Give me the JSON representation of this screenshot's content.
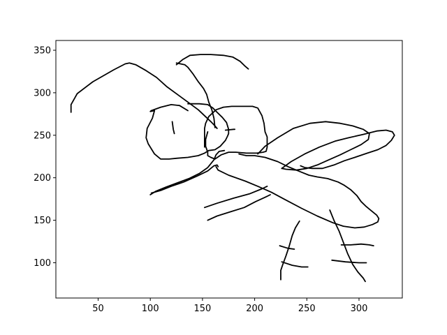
{
  "chart_data": {
    "type": "line",
    "title": "",
    "xlabel": "",
    "ylabel": "",
    "xlim": [
      9.5,
      341.5
    ],
    "ylim": [
      58.5,
      361.5
    ],
    "x_ticks": [
      50,
      100,
      150,
      200,
      250,
      300
    ],
    "y_ticks": [
      100,
      150,
      200,
      250,
      300,
      350
    ],
    "x_tick_labels": [
      "50",
      "100",
      "150",
      "200",
      "250",
      "300"
    ],
    "y_tick_labels": [
      "100",
      "150",
      "200",
      "250",
      "300",
      "350"
    ],
    "grid": false,
    "legend": "none",
    "line_color": "#000000",
    "strokes": [
      [
        [
          24,
          277
        ],
        [
          24,
          286
        ],
        [
          30,
          299
        ],
        [
          45,
          313
        ],
        [
          65,
          327
        ],
        [
          76,
          334
        ],
        [
          80,
          335
        ],
        [
          86,
          333
        ],
        [
          96,
          326
        ],
        [
          106,
          318
        ],
        [
          116,
          307
        ],
        [
          126,
          298
        ],
        [
          136,
          289
        ],
        [
          146,
          280
        ],
        [
          152,
          273
        ],
        [
          158,
          266
        ],
        [
          162,
          261
        ],
        [
          164,
          258
        ]
      ],
      [
        [
          125,
          335
        ],
        [
          129,
          334
        ],
        [
          133,
          333
        ],
        [
          136,
          330
        ],
        [
          141,
          322
        ],
        [
          146,
          313
        ],
        [
          151,
          305
        ],
        [
          154,
          298
        ],
        [
          156,
          289
        ],
        [
          159,
          280
        ],
        [
          161,
          270
        ],
        [
          162,
          259
        ]
      ],
      [
        [
          125,
          333
        ],
        [
          131,
          339
        ],
        [
          138,
          344
        ],
        [
          148,
          345
        ],
        [
          158,
          345
        ],
        [
          170,
          344
        ],
        [
          179,
          342
        ],
        [
          186,
          337
        ],
        [
          191,
          331
        ],
        [
          194,
          328
        ]
      ],
      [
        [
          136,
          279
        ],
        [
          128,
          285
        ],
        [
          120,
          286
        ],
        [
          110,
          283
        ],
        [
          101,
          279
        ],
        [
          100,
          278
        ],
        [
          104,
          279
        ],
        [
          102,
          270
        ],
        [
          97,
          258
        ],
        [
          96,
          247
        ],
        [
          98,
          240
        ],
        [
          104,
          228
        ],
        [
          110,
          222
        ],
        [
          118,
          222
        ],
        [
          126,
          223
        ],
        [
          136,
          224
        ],
        [
          146,
          226
        ],
        [
          152,
          229
        ],
        [
          156,
          232
        ],
        [
          162,
          233
        ],
        [
          167,
          237
        ],
        [
          172,
          244
        ],
        [
          174,
          249
        ],
        [
          175,
          252
        ],
        [
          175,
          257
        ],
        [
          173,
          265
        ],
        [
          169,
          271
        ],
        [
          164,
          277
        ],
        [
          160,
          282
        ],
        [
          155,
          286
        ],
        [
          147,
          287
        ],
        [
          136,
          287
        ]
      ],
      [
        [
          121,
          266
        ],
        [
          122,
          257
        ],
        [
          123,
          252
        ]
      ],
      [
        [
          172,
          256
        ],
        [
          180,
          257
        ],
        [
          181,
          257
        ]
      ],
      [
        [
          155,
          254
        ],
        [
          153,
          245
        ],
        [
          153,
          237
        ],
        [
          155,
          230
        ],
        [
          155,
          226
        ],
        [
          158,
          224
        ],
        [
          162,
          222
        ],
        [
          168,
          227
        ],
        [
          175,
          230
        ],
        [
          182,
          230
        ],
        [
          192,
          229
        ],
        [
          202,
          229
        ],
        [
          208,
          230
        ],
        [
          211,
          231
        ],
        [
          212,
          236
        ],
        [
          212,
          248
        ],
        [
          210,
          254
        ],
        [
          209,
          264
        ],
        [
          207,
          273
        ],
        [
          203,
          282
        ],
        [
          198,
          284
        ],
        [
          190,
          284
        ],
        [
          178,
          284
        ],
        [
          170,
          283
        ],
        [
          163,
          280
        ],
        [
          156,
          272
        ],
        [
          153,
          264
        ],
        [
          152,
          258
        ],
        [
          152,
          250
        ],
        [
          152,
          243
        ],
        [
          152,
          236
        ]
      ],
      [
        [
          100,
          180
        ],
        [
          105,
          184
        ],
        [
          115,
          189
        ],
        [
          126,
          194
        ],
        [
          137,
          199
        ],
        [
          147,
          205
        ],
        [
          155,
          212
        ],
        [
          161,
          221
        ],
        [
          163,
          227
        ],
        [
          166,
          231
        ],
        [
          171,
          232
        ]
      ],
      [
        [
          101,
          182
        ],
        [
          110,
          185
        ],
        [
          120,
          190
        ],
        [
          132,
          195
        ],
        [
          145,
          202
        ],
        [
          155,
          208
        ],
        [
          161,
          214
        ],
        [
          164,
          215
        ],
        [
          165,
          213
        ]
      ],
      [
        [
          163,
          213
        ],
        [
          165,
          209
        ],
        [
          175,
          203
        ],
        [
          191,
          196
        ],
        [
          203,
          190
        ],
        [
          216,
          183
        ],
        [
          228,
          175
        ],
        [
          245,
          164
        ],
        [
          260,
          155
        ],
        [
          275,
          147
        ],
        [
          285,
          143
        ],
        [
          296,
          141
        ],
        [
          305,
          142
        ],
        [
          313,
          145
        ],
        [
          318,
          148
        ],
        [
          319,
          152
        ],
        [
          317,
          156
        ],
        [
          312,
          161
        ],
        [
          307,
          166
        ],
        [
          302,
          172
        ],
        [
          298,
          179
        ],
        [
          292,
          186
        ],
        [
          286,
          191
        ],
        [
          280,
          195
        ],
        [
          270,
          199
        ],
        [
          260,
          201
        ],
        [
          252,
          203
        ],
        [
          244,
          207
        ],
        [
          232,
          213
        ],
        [
          222,
          219
        ],
        [
          210,
          224
        ],
        [
          200,
          226
        ],
        [
          192,
          226
        ],
        [
          185,
          228
        ]
      ],
      [
        [
          203,
          228
        ],
        [
          210,
          237
        ],
        [
          222,
          247
        ],
        [
          237,
          258
        ],
        [
          253,
          264
        ],
        [
          268,
          266
        ],
        [
          282,
          264
        ],
        [
          294,
          261
        ],
        [
          304,
          257
        ],
        [
          310,
          252
        ],
        [
          309,
          245
        ],
        [
          302,
          239
        ],
        [
          292,
          233
        ],
        [
          282,
          227
        ],
        [
          271,
          221
        ],
        [
          260,
          215
        ],
        [
          250,
          211
        ],
        [
          240,
          209
        ],
        [
          230,
          210
        ],
        [
          226,
          211
        ]
      ],
      [
        [
          226,
          211
        ],
        [
          235,
          219
        ],
        [
          248,
          228
        ],
        [
          262,
          236
        ],
        [
          277,
          243
        ],
        [
          290,
          247
        ],
        [
          304,
          251
        ],
        [
          317,
          255
        ],
        [
          326,
          256
        ],
        [
          332,
          254
        ],
        [
          334,
          250
        ],
        [
          331,
          244
        ],
        [
          326,
          238
        ],
        [
          318,
          233
        ],
        [
          308,
          229
        ],
        [
          296,
          224
        ],
        [
          286,
          220
        ],
        [
          276,
          215
        ],
        [
          265,
          211
        ],
        [
          255,
          211
        ],
        [
          248,
          212
        ],
        [
          244,
          214
        ]
      ],
      [
        [
          152,
          165
        ],
        [
          164,
          170
        ],
        [
          180,
          176
        ],
        [
          195,
          181
        ],
        [
          207,
          187
        ],
        [
          212,
          190
        ]
      ],
      [
        [
          155,
          150
        ],
        [
          164,
          155
        ],
        [
          177,
          160
        ],
        [
          190,
          165
        ],
        [
          201,
          172
        ],
        [
          210,
          177
        ],
        [
          215,
          180
        ]
      ],
      [
        [
          243,
          149
        ],
        [
          239,
          141
        ],
        [
          236,
          132
        ],
        [
          233,
          119
        ],
        [
          230,
          108
        ],
        [
          227,
          98
        ],
        [
          225,
          91
        ],
        [
          225,
          80
        ]
      ],
      [
        [
          272,
          162
        ],
        [
          276,
          150
        ],
        [
          281,
          137
        ],
        [
          285,
          124
        ],
        [
          289,
          111
        ],
        [
          294,
          98
        ],
        [
          299,
          89
        ],
        [
          304,
          82
        ],
        [
          306,
          78
        ]
      ],
      [
        [
          224,
          120
        ],
        [
          232,
          117
        ],
        [
          238,
          116
        ]
      ],
      [
        [
          226,
          101
        ],
        [
          236,
          97
        ],
        [
          245,
          95
        ],
        [
          251,
          95
        ]
      ],
      [
        [
          274,
          103
        ],
        [
          287,
          101
        ],
        [
          300,
          100
        ],
        [
          307,
          100
        ]
      ],
      [
        [
          283,
          121
        ],
        [
          292,
          121
        ],
        [
          302,
          122
        ],
        [
          310,
          121
        ],
        [
          314,
          120
        ]
      ]
    ]
  }
}
